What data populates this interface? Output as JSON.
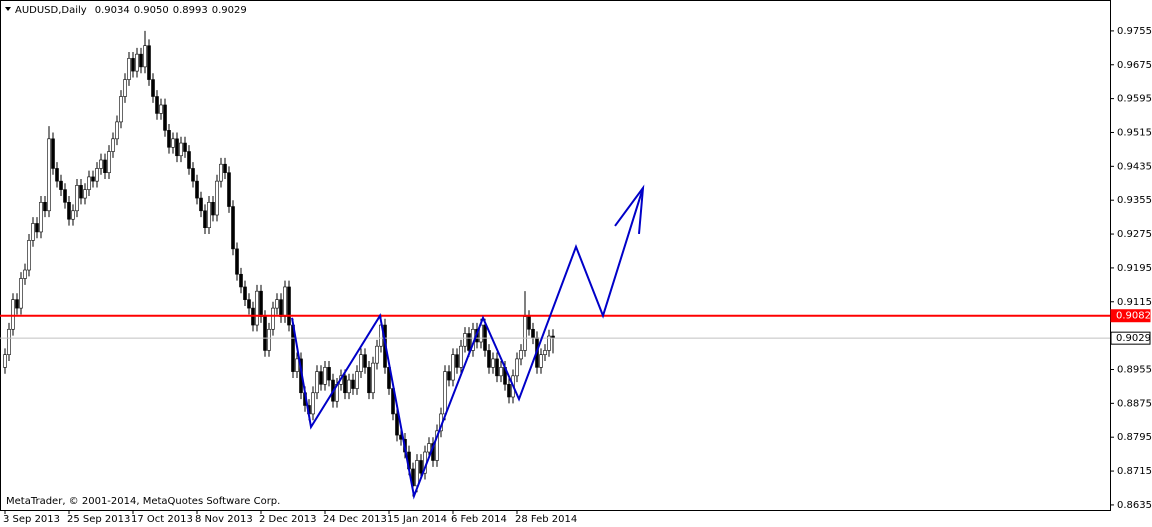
{
  "chart_data": {
    "type": "candlestick",
    "title": "AUDUSD,Daily",
    "ohlc_labels": [
      "0.9034",
      "0.9050",
      "0.8993",
      "0.9029"
    ],
    "copyright": "MetaTrader, © 2001-2014, MetaQuotes Software Corp.",
    "up_color": "#ffffff",
    "down_color": "#000000",
    "ylim": [
      0.8623,
      0.9828
    ],
    "yticks": [
      0.9755,
      0.9675,
      0.9595,
      0.9515,
      0.9435,
      0.9355,
      0.9275,
      0.9195,
      0.9115,
      0.8955,
      0.8875,
      0.8795,
      0.8715,
      0.8635
    ],
    "hlines": [
      {
        "value": 0.9082,
        "label": "0.9082",
        "color": "#ff0000"
      },
      {
        "value": 0.9029,
        "label": "0.9029",
        "color": "#c0c0c0"
      }
    ],
    "zigzag": {
      "color": "#0000c8",
      "points": [
        [
          71.75,
          0.9077
        ],
        [
          76.5,
          0.8819
        ],
        [
          93.75,
          0.9082
        ],
        [
          102.25,
          0.8656
        ],
        [
          119.5,
          0.9077
        ],
        [
          128.5,
          0.8885
        ],
        [
          142.75,
          0.9245
        ],
        [
          149.5,
          0.9082
        ],
        [
          159.5,
          0.9384
        ]
      ]
    },
    "categories": [
      "3 Sep 2013",
      null,
      null,
      null,
      null,
      null,
      null,
      null,
      null,
      null,
      null,
      null,
      null,
      null,
      null,
      null,
      "25 Sep 2013",
      null,
      null,
      null,
      null,
      null,
      null,
      null,
      null,
      null,
      null,
      null,
      null,
      null,
      null,
      null,
      "17 Oct 2013",
      null,
      null,
      null,
      null,
      null,
      null,
      null,
      null,
      null,
      null,
      null,
      null,
      null,
      null,
      null,
      "8 Nov 2013",
      null,
      null,
      null,
      null,
      null,
      null,
      null,
      null,
      null,
      null,
      null,
      null,
      null,
      null,
      null,
      "2 Dec 2013",
      null,
      null,
      null,
      null,
      null,
      null,
      null,
      null,
      null,
      null,
      null,
      null,
      null,
      null,
      null,
      "24 Dec 2013",
      null,
      null,
      null,
      null,
      null,
      null,
      null,
      null,
      null,
      null,
      null,
      null,
      null,
      null,
      null,
      "15 Jan 2014",
      null,
      null,
      null,
      null,
      null,
      null,
      null,
      null,
      null,
      null,
      null,
      null,
      null,
      null,
      null,
      "6 Feb 2014",
      null,
      null,
      null,
      null,
      null,
      null,
      null,
      null,
      null,
      null,
      null,
      null,
      null,
      null,
      null,
      "28 Feb 2014",
      null,
      null,
      null,
      null,
      null,
      null,
      null,
      null,
      null
    ],
    "series": [
      {
        "values": [
          [
            0.896,
            0.9005,
            0.8945,
            0.899
          ],
          [
            0.899,
            0.9065,
            0.8975,
            0.905
          ],
          [
            0.905,
            0.9135,
            0.9035,
            0.912
          ],
          [
            0.912,
            0.9135,
            0.9085,
            0.91
          ],
          [
            0.91,
            0.9185,
            0.9085,
            0.917
          ],
          [
            0.917,
            0.9205,
            0.9155,
            0.919
          ],
          [
            0.919,
            0.9275,
            0.9175,
            0.926
          ],
          [
            0.926,
            0.9315,
            0.9245,
            0.93
          ],
          [
            0.93,
            0.9315,
            0.9265,
            0.928
          ],
          [
            0.928,
            0.9365,
            0.9265,
            0.935
          ],
          [
            0.935,
            0.9365,
            0.9315,
            0.933
          ],
          [
            0.933,
            0.953,
            0.9315,
            0.95
          ],
          [
            0.95,
            0.9515,
            0.9415,
            0.943
          ],
          [
            0.943,
            0.9445,
            0.9385,
            0.94
          ],
          [
            0.94,
            0.9415,
            0.9365,
            0.938
          ],
          [
            0.938,
            0.9395,
            0.9335,
            0.935
          ],
          [
            0.935,
            0.9365,
            0.9295,
            0.931
          ],
          [
            0.931,
            0.9345,
            0.9295,
            0.933
          ],
          [
            0.933,
            0.9405,
            0.9315,
            0.939
          ],
          [
            0.939,
            0.9405,
            0.9345,
            0.936
          ],
          [
            0.936,
            0.9395,
            0.9345,
            0.938
          ],
          [
            0.938,
            0.9425,
            0.9365,
            0.941
          ],
          [
            0.941,
            0.9425,
            0.9385,
            0.94
          ],
          [
            0.94,
            0.9445,
            0.9385,
            0.943
          ],
          [
            0.943,
            0.9465,
            0.9415,
            0.945
          ],
          [
            0.945,
            0.9465,
            0.9405,
            0.942
          ],
          [
            0.942,
            0.9485,
            0.9405,
            0.947
          ],
          [
            0.947,
            0.9515,
            0.9455,
            0.95
          ],
          [
            0.95,
            0.9555,
            0.9485,
            0.954
          ],
          [
            0.954,
            0.9615,
            0.9525,
            0.96
          ],
          [
            0.96,
            0.9655,
            0.9585,
            0.964
          ],
          [
            0.964,
            0.9705,
            0.9625,
            0.969
          ],
          [
            0.969,
            0.9705,
            0.9645,
            0.966
          ],
          [
            0.966,
            0.9715,
            0.9645,
            0.97
          ],
          [
            0.97,
            0.9715,
            0.9655,
            0.967
          ],
          [
            0.967,
            0.9755,
            0.9655,
            0.972
          ],
          [
            0.972,
            0.9735,
            0.9625,
            0.964
          ],
          [
            0.964,
            0.9655,
            0.9585,
            0.96
          ],
          [
            0.96,
            0.9615,
            0.9545,
            0.956
          ],
          [
            0.956,
            0.9595,
            0.9545,
            0.958
          ],
          [
            0.958,
            0.9595,
            0.9505,
            0.952
          ],
          [
            0.952,
            0.9535,
            0.9465,
            0.948
          ],
          [
            0.948,
            0.9515,
            0.9465,
            0.95
          ],
          [
            0.95,
            0.9515,
            0.9445,
            0.946
          ],
          [
            0.946,
            0.9505,
            0.9445,
            0.949
          ],
          [
            0.949,
            0.9505,
            0.9455,
            0.947
          ],
          [
            0.947,
            0.9485,
            0.9415,
            0.943
          ],
          [
            0.943,
            0.9445,
            0.9385,
            0.94
          ],
          [
            0.94,
            0.9415,
            0.9345,
            0.936
          ],
          [
            0.936,
            0.9375,
            0.9315,
            0.933
          ],
          [
            0.933,
            0.9345,
            0.9275,
            0.929
          ],
          [
            0.929,
            0.9365,
            0.9275,
            0.935
          ],
          [
            0.935,
            0.9365,
            0.9305,
            0.932
          ],
          [
            0.932,
            0.9415,
            0.9305,
            0.94
          ],
          [
            0.94,
            0.9455,
            0.9385,
            0.944
          ],
          [
            0.944,
            0.9455,
            0.9405,
            0.942
          ],
          [
            0.942,
            0.9435,
            0.9325,
            0.934
          ],
          [
            0.934,
            0.9355,
            0.9225,
            0.924
          ],
          [
            0.924,
            0.9255,
            0.9165,
            0.918
          ],
          [
            0.918,
            0.9195,
            0.9135,
            0.915
          ],
          [
            0.915,
            0.9165,
            0.9105,
            0.912
          ],
          [
            0.912,
            0.9135,
            0.9085,
            0.91
          ],
          [
            0.91,
            0.9115,
            0.9045,
            0.906
          ],
          [
            0.906,
            0.9155,
            0.9045,
            0.914
          ],
          [
            0.914,
            0.9155,
            0.9065,
            0.908
          ],
          [
            0.908,
            0.9095,
            0.8985,
            0.9
          ],
          [
            0.9,
            0.9065,
            0.8985,
            0.905
          ],
          [
            0.905,
            0.9115,
            0.9035,
            0.91
          ],
          [
            0.91,
            0.9135,
            0.9085,
            0.912
          ],
          [
            0.912,
            0.9135,
            0.9065,
            0.908
          ],
          [
            0.908,
            0.9165,
            0.9065,
            0.915
          ],
          [
            0.915,
            0.9165,
            0.9045,
            0.906
          ],
          [
            0.906,
            0.9075,
            0.8935,
            0.895
          ],
          [
            0.895,
            0.8995,
            0.8935,
            0.898
          ],
          [
            0.898,
            0.8995,
            0.8885,
            0.89
          ],
          [
            0.89,
            0.8915,
            0.8855,
            0.887
          ],
          [
            0.887,
            0.8885,
            0.8835,
            0.885
          ],
          [
            0.885,
            0.8915,
            0.8835,
            0.89
          ],
          [
            0.89,
            0.8965,
            0.8885,
            0.895
          ],
          [
            0.895,
            0.8965,
            0.8905,
            0.892
          ],
          [
            0.892,
            0.8975,
            0.8905,
            0.896
          ],
          [
            0.896,
            0.8975,
            0.8915,
            0.893
          ],
          [
            0.893,
            0.8945,
            0.8865,
            0.888
          ],
          [
            0.888,
            0.8935,
            0.8865,
            0.892
          ],
          [
            0.892,
            0.8955,
            0.8905,
            0.894
          ],
          [
            0.894,
            0.8955,
            0.8885,
            0.89
          ],
          [
            0.89,
            0.8945,
            0.8885,
            0.893
          ],
          [
            0.893,
            0.8945,
            0.8895,
            0.891
          ],
          [
            0.891,
            0.8965,
            0.8895,
            0.895
          ],
          [
            0.895,
            0.9005,
            0.8935,
            0.899
          ],
          [
            0.899,
            0.9005,
            0.8945,
            0.896
          ],
          [
            0.896,
            0.8975,
            0.8885,
            0.89
          ],
          [
            0.89,
            0.8985,
            0.8885,
            0.897
          ],
          [
            0.897,
            0.9025,
            0.8955,
            0.901
          ],
          [
            0.901,
            0.9085,
            0.8995,
            0.906
          ],
          [
            0.906,
            0.9075,
            0.8945,
            0.896
          ],
          [
            0.896,
            0.8975,
            0.8895,
            0.891
          ],
          [
            0.891,
            0.8925,
            0.8835,
            0.885
          ],
          [
            0.885,
            0.8865,
            0.8785,
            0.88
          ],
          [
            0.88,
            0.8815,
            0.8775,
            0.879
          ],
          [
            0.879,
            0.8805,
            0.8745,
            0.876
          ],
          [
            0.876,
            0.8775,
            0.8705,
            0.872
          ],
          [
            0.872,
            0.8735,
            0.8655,
            0.868
          ],
          [
            0.868,
            0.8755,
            0.8665,
            0.874
          ],
          [
            0.874,
            0.8755,
            0.8695,
            0.871
          ],
          [
            0.871,
            0.8775,
            0.8695,
            0.876
          ],
          [
            0.876,
            0.8795,
            0.8745,
            0.878
          ],
          [
            0.878,
            0.8795,
            0.8725,
            0.874
          ],
          [
            0.874,
            0.8825,
            0.8725,
            0.881
          ],
          [
            0.881,
            0.8865,
            0.8795,
            0.885
          ],
          [
            0.885,
            0.8965,
            0.8835,
            0.895
          ],
          [
            0.895,
            0.8965,
            0.8915,
            0.893
          ],
          [
            0.893,
            0.9005,
            0.8915,
            0.899
          ],
          [
            0.899,
            0.9005,
            0.8945,
            0.896
          ],
          [
            0.896,
            0.9025,
            0.8945,
            0.901
          ],
          [
            0.901,
            0.9055,
            0.8995,
            0.904
          ],
          [
            0.904,
            0.9055,
            0.8985,
            0.9
          ],
          [
            0.9,
            0.9065,
            0.8985,
            0.905
          ],
          [
            0.905,
            0.9065,
            0.9005,
            0.902
          ],
          [
            0.902,
            0.9075,
            0.9005,
            0.906
          ],
          [
            0.906,
            0.9075,
            0.8985,
            0.9
          ],
          [
            0.9,
            0.9015,
            0.8945,
            0.896
          ],
          [
            0.896,
            0.8995,
            0.8945,
            0.898
          ],
          [
            0.898,
            0.8995,
            0.8925,
            0.894
          ],
          [
            0.894,
            0.8975,
            0.8925,
            0.896
          ],
          [
            0.896,
            0.8975,
            0.8905,
            0.892
          ],
          [
            0.892,
            0.8935,
            0.8875,
            0.889
          ],
          [
            0.889,
            0.8955,
            0.8875,
            0.894
          ],
          [
            0.894,
            0.8995,
            0.8925,
            0.898
          ],
          [
            0.898,
            0.9015,
            0.8965,
            0.9
          ],
          [
            0.9,
            0.914,
            0.8985,
            0.908
          ],
          [
            0.908,
            0.9095,
            0.9035,
            0.905
          ],
          [
            0.905,
            0.9065,
            0.9015,
            0.903
          ],
          [
            0.903,
            0.9045,
            0.8945,
            0.896
          ],
          [
            0.896,
            0.9005,
            0.8945,
            0.899
          ],
          [
            0.899,
            0.9015,
            0.8975,
            0.9
          ],
          [
            0.9,
            0.9049,
            0.8985,
            0.9034
          ],
          [
            0.9034,
            0.905,
            0.8993,
            0.9029
          ]
        ]
      }
    ]
  }
}
